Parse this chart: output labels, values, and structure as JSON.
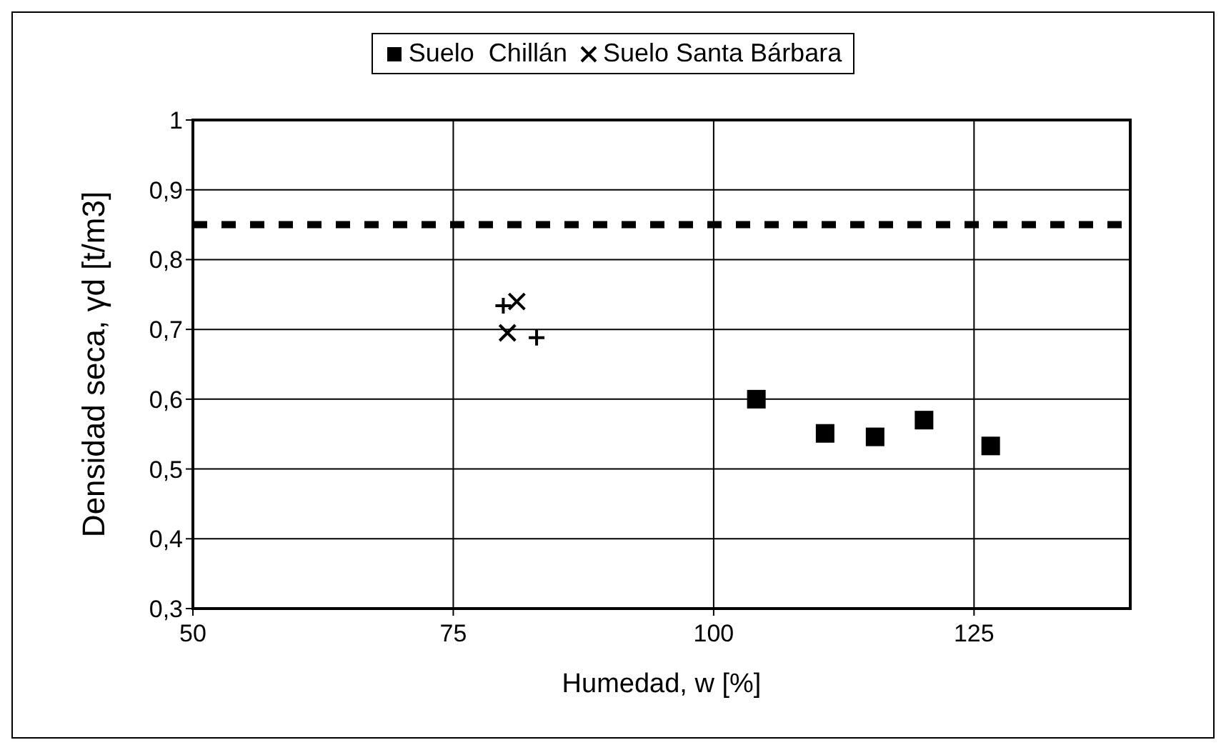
{
  "chart_data": {
    "type": "scatter",
    "xlabel": "Humedad, w [%]",
    "ylabel": "Densidad seca, γd [t/m3]",
    "xlim": [
      50,
      140
    ],
    "xticks": [
      50,
      75,
      100,
      125
    ],
    "ylim": [
      0.3,
      1
    ],
    "yticks": [
      {
        "value": 0.3,
        "label": "0,3"
      },
      {
        "value": 0.4,
        "label": "0,4"
      },
      {
        "value": 0.5,
        "label": "0,5"
      },
      {
        "value": 0.6,
        "label": "0,6"
      },
      {
        "value": 0.7,
        "label": "0,7"
      },
      {
        "value": 0.8,
        "label": "0,8"
      },
      {
        "value": 0.9,
        "label": "0,9"
      },
      {
        "value": 1,
        "label": "1"
      }
    ],
    "grid": true,
    "legend": "top",
    "series": [
      {
        "name": "Suelo  Chillán",
        "color": "#000000",
        "marker": "square",
        "x": [
          104.1,
          110.7,
          115.5,
          120.2,
          126.6
        ],
        "values": [
          0.6,
          0.551,
          0.546,
          0.57,
          0.533
        ]
      },
      {
        "name": "Suelo Santa Bárbara",
        "color": "#000000",
        "marker": "cross",
        "x": [
          81.1,
          80.2
        ],
        "values": [
          0.74,
          0.695
        ]
      },
      {
        "color": "#000000",
        "marker": "plus",
        "x": [
          79.8,
          83.0
        ],
        "values": [
          0.734,
          0.688
        ]
      }
    ],
    "ref_lines": [
      {
        "axis": "y",
        "value": 0.85,
        "color": "#000000",
        "line_style": "dashed"
      }
    ]
  }
}
